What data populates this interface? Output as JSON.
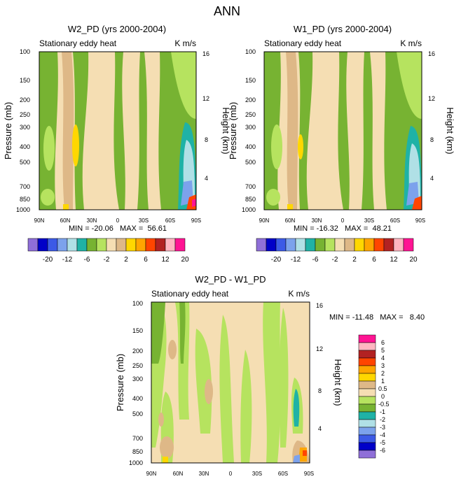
{
  "title": "ANN",
  "palette_colors": [
    "#8f6fd8",
    "#0000c8",
    "#3c5ae6",
    "#7ca2ec",
    "#b0e0e6",
    "#1fb2a6",
    "#77b332",
    "#b6e35f",
    "#f5deb3",
    "#deb887",
    "#ffd700",
    "#ffa500",
    "#ff4500",
    "#b22222",
    "#ffb6c1",
    "#ff1493"
  ],
  "chart_data": [
    {
      "type": "heatmap",
      "name": "W2_PD",
      "title": "W2_PD (yrs 2000-2004)",
      "left_string": "Stationary eddy heat",
      "right_string": "K m/s",
      "ylabel": "Pressure (mb)",
      "ylabel_right": "Height (km)",
      "x_ticks": [
        "90N",
        "60N",
        "30N",
        "0",
        "30S",
        "60S",
        "90S"
      ],
      "y_ticks": [
        "100",
        "150",
        "200",
        "250",
        "300",
        "400",
        "500",
        "700",
        "850",
        "1000"
      ],
      "y_ticks_right": [
        "16",
        "12",
        "8",
        "4"
      ],
      "stats": "MIN = -20.06   MAX =  56.61",
      "color_levels": [
        "-20",
        "-12",
        "-6",
        "-2",
        "2",
        "6",
        "12",
        "20"
      ]
    },
    {
      "type": "heatmap",
      "name": "W1_PD",
      "title": "W1_PD (yrs 2000-2004)",
      "left_string": "Stationary eddy heat",
      "right_string": "K m/s",
      "ylabel": "Pressure (mb)",
      "ylabel_right": "Height (km)",
      "x_ticks": [
        "90N",
        "60N",
        "30N",
        "0",
        "30S",
        "60S",
        "90S"
      ],
      "y_ticks": [
        "100",
        "150",
        "200",
        "250",
        "300",
        "400",
        "500",
        "700",
        "850",
        "1000"
      ],
      "y_ticks_right": [
        "16",
        "12",
        "8",
        "4"
      ],
      "stats": "MIN = -16.32   MAX =  48.21",
      "color_levels": [
        "-20",
        "-12",
        "-6",
        "-2",
        "2",
        "6",
        "12",
        "20"
      ]
    },
    {
      "type": "heatmap",
      "name": "diff",
      "title": "W2_PD - W1_PD",
      "left_string": "Stationary eddy heat",
      "right_string": "K m/s",
      "ylabel": "Pressure (mb)",
      "ylabel_right": "Height (km)",
      "x_ticks": [
        "90N",
        "60N",
        "30N",
        "0",
        "30S",
        "60S",
        "90S"
      ],
      "y_ticks": [
        "100",
        "150",
        "200",
        "250",
        "300",
        "400",
        "500",
        "700",
        "850",
        "1000"
      ],
      "y_ticks_right": [
        "16",
        "12",
        "8",
        "4"
      ],
      "stats": "MIN = -11.48   MAX =   8.40",
      "color_levels": [
        "6",
        "5",
        "4",
        "3",
        "2",
        "1",
        "0.5",
        "0",
        "-0.5",
        "-1",
        "-2",
        "-3",
        "-4",
        "-5",
        "-6"
      ]
    }
  ]
}
